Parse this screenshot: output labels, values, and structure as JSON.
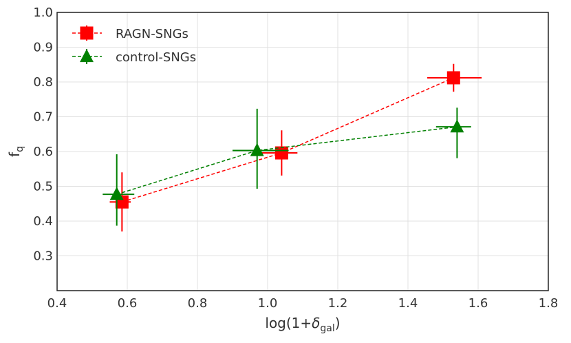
{
  "chart_data": {
    "type": "scatter",
    "xlabel": "log(1+δgal)",
    "xlabel_parts": {
      "main": "log(1+",
      "symbol": "δ",
      "subscript": "gal",
      "close": ")"
    },
    "ylabel": "fq",
    "ylabel_parts": {
      "main": "f",
      "subscript": "q"
    },
    "xlim": [
      0.4,
      1.8
    ],
    "ylim": [
      0.2,
      1.0
    ],
    "x_ticks": [
      "0.4",
      "0.6",
      "0.8",
      "1.0",
      "1.2",
      "1.4",
      "1.6",
      "1.8"
    ],
    "y_ticks": [
      "0.3",
      "0.4",
      "0.5",
      "0.6",
      "0.7",
      "0.8",
      "0.9",
      "1.0"
    ],
    "grid": true,
    "legend_position": "top-left",
    "series": [
      {
        "name": "RAGN-SNGs",
        "color": "#ff0000",
        "marker": "square",
        "line_style": "dashed",
        "x": [
          0.585,
          1.04,
          1.53
        ],
        "y": [
          0.455,
          0.596,
          0.812
        ],
        "xerr_low": [
          0.035,
          0.06,
          0.075
        ],
        "xerr_high": [
          0.025,
          0.045,
          0.08
        ],
        "yerr_low": [
          0.085,
          0.065,
          0.04
        ],
        "yerr_high": [
          0.085,
          0.065,
          0.04
        ]
      },
      {
        "name": "control-SNGs",
        "color": "#008000",
        "marker": "triangle",
        "line_style": "dashed",
        "x": [
          0.57,
          0.97,
          1.54
        ],
        "y": [
          0.477,
          0.603,
          0.671
        ],
        "xerr_low": [
          0.04,
          0.07,
          0.06
        ],
        "xerr_high": [
          0.05,
          0.09,
          0.04
        ],
        "yerr_low": [
          0.09,
          0.11,
          0.09
        ],
        "yerr_high": [
          0.115,
          0.12,
          0.055
        ]
      }
    ]
  }
}
